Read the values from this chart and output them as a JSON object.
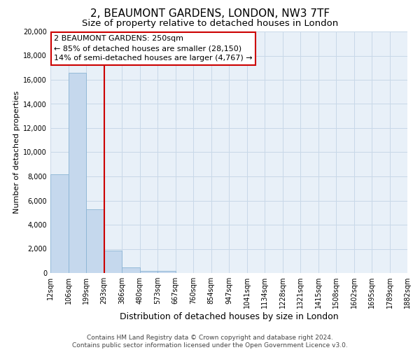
{
  "title": "2, BEAUMONT GARDENS, LONDON, NW3 7TF",
  "subtitle": "Size of property relative to detached houses in London",
  "xlabel": "Distribution of detached houses by size in London",
  "ylabel": "Number of detached properties",
  "bar_color": "#c5d8ed",
  "bar_edge_color": "#8ab4d4",
  "bin_labels": [
    "12sqm",
    "106sqm",
    "199sqm",
    "293sqm",
    "386sqm",
    "480sqm",
    "573sqm",
    "667sqm",
    "760sqm",
    "854sqm",
    "947sqm",
    "1041sqm",
    "1134sqm",
    "1228sqm",
    "1321sqm",
    "1415sqm",
    "1508sqm",
    "1602sqm",
    "1695sqm",
    "1789sqm",
    "1882sqm"
  ],
  "bar_heights": [
    8150,
    16600,
    5300,
    1850,
    450,
    200,
    150,
    0,
    0,
    0,
    0,
    0,
    0,
    0,
    0,
    0,
    0,
    0,
    0,
    0
  ],
  "ylim": [
    0,
    20000
  ],
  "yticks": [
    0,
    2000,
    4000,
    6000,
    8000,
    10000,
    12000,
    14000,
    16000,
    18000,
    20000
  ],
  "vline_color": "#cc0000",
  "annotation_title": "2 BEAUMONT GARDENS: 250sqm",
  "annotation_line1": "← 85% of detached houses are smaller (28,150)",
  "annotation_line2": "14% of semi-detached houses are larger (4,767) →",
  "annotation_box_color": "#ffffff",
  "annotation_box_edge": "#cc0000",
  "footer_line1": "Contains HM Land Registry data © Crown copyright and database right 2024.",
  "footer_line2": "Contains public sector information licensed under the Open Government Licence v3.0.",
  "grid_color": "#c8d8e8",
  "background_color": "#e8f0f8",
  "title_fontsize": 11,
  "subtitle_fontsize": 9.5,
  "xlabel_fontsize": 9,
  "ylabel_fontsize": 8,
  "annotation_fontsize": 8,
  "footer_fontsize": 6.5,
  "tick_fontsize": 7
}
